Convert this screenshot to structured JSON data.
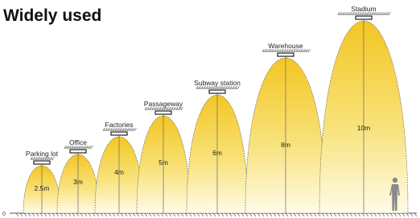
{
  "header": {
    "title": "Widely used"
  },
  "ground_label": "0",
  "items": [
    {
      "label": "Parking lot",
      "height": "2.5m"
    },
    {
      "label": "Office",
      "height": "3m"
    },
    {
      "label": "Factories",
      "height": "4m"
    },
    {
      "label": "Passageway",
      "height": "5m"
    },
    {
      "label": "Subway station",
      "height": "6m"
    },
    {
      "label": "Warehouse",
      "height": "8m"
    },
    {
      "label": "Stadium",
      "height": "10m"
    }
  ]
}
